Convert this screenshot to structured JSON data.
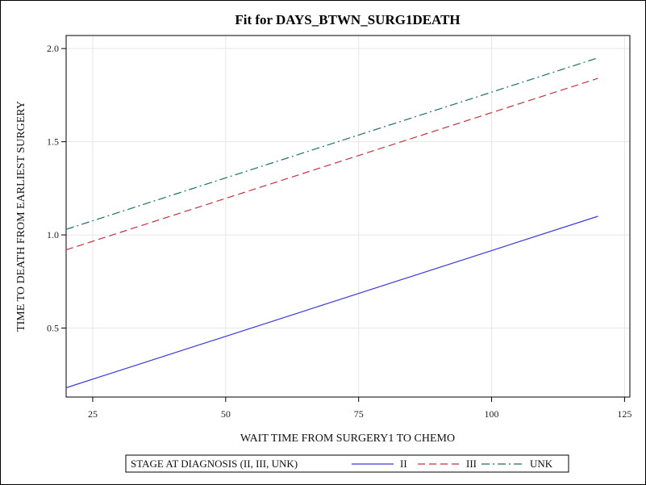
{
  "chart_data": {
    "type": "line",
    "title": "Fit for DAYS_BTWN_SURG1DEATH",
    "xlabel": "WAIT TIME FROM SURGERY1 TO CHEMO",
    "ylabel": "TIME TO DEATH FROM EARLIEST SURGERY",
    "xlim": [
      20,
      126
    ],
    "ylim": [
      0.13,
      2.07
    ],
    "xticks": [
      25,
      50,
      75,
      100,
      125
    ],
    "yticks": [
      0.5,
      1.0,
      1.5,
      2.0
    ],
    "xtick_labels": [
      "25",
      "50",
      "75",
      "100",
      "125"
    ],
    "ytick_labels": [
      "0.5",
      "1.0",
      "1.5",
      "2.0"
    ],
    "grid": true,
    "legend": {
      "title": "STAGE AT DIAGNOSIS (II, III, UNK)",
      "position": "bottom"
    },
    "series": [
      {
        "name": "II",
        "x": [
          20,
          120
        ],
        "y": [
          0.18,
          1.1
        ],
        "color": "#3b3bd6",
        "dash": "solid"
      },
      {
        "name": "III",
        "x": [
          20,
          120
        ],
        "y": [
          0.92,
          1.84
        ],
        "color": "#c0343f",
        "dash": "dash"
      },
      {
        "name": "UNK",
        "x": [
          20,
          120
        ],
        "y": [
          1.03,
          1.95
        ],
        "color": "#1f6f6a",
        "dash": "dashdot"
      }
    ]
  }
}
